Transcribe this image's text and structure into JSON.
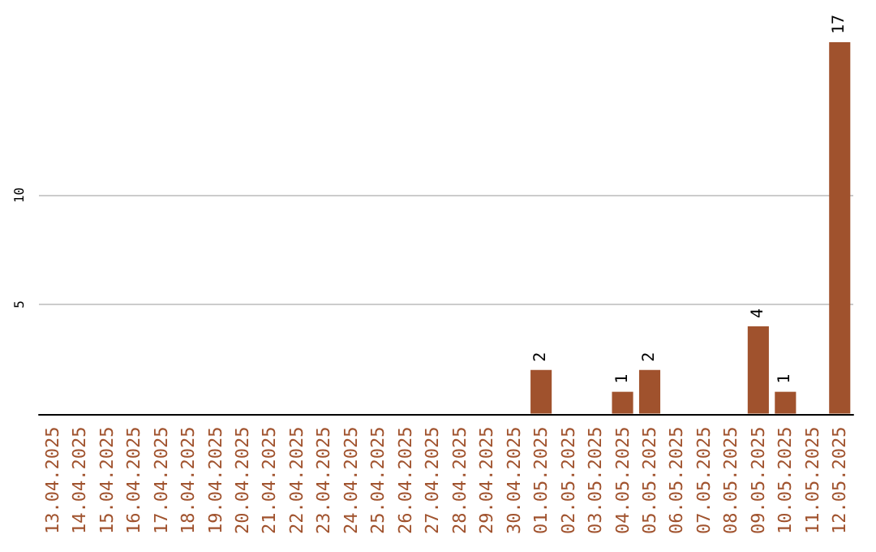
{
  "chart_data": {
    "type": "bar",
    "categories": [
      "13.04.2025",
      "14.04.2025",
      "15.04.2025",
      "16.04.2025",
      "17.04.2025",
      "18.04.2025",
      "19.04.2025",
      "20.04.2025",
      "21.04.2025",
      "22.04.2025",
      "23.04.2025",
      "24.04.2025",
      "25.04.2025",
      "26.04.2025",
      "27.04.2025",
      "28.04.2025",
      "29.04.2025",
      "30.04.2025",
      "01.05.2025",
      "02.05.2025",
      "03.05.2025",
      "04.05.2025",
      "05.05.2025",
      "06.05.2025",
      "07.05.2025",
      "08.05.2025",
      "09.05.2025",
      "10.05.2025",
      "11.05.2025",
      "12.05.2025"
    ],
    "values": [
      0,
      0,
      0,
      0,
      0,
      0,
      0,
      0,
      0,
      0,
      0,
      0,
      0,
      0,
      0,
      0,
      0,
      0,
      2,
      0,
      0,
      1,
      2,
      0,
      0,
      0,
      4,
      1,
      0,
      17
    ],
    "value_labels": [
      null,
      null,
      null,
      null,
      null,
      null,
      null,
      null,
      null,
      null,
      null,
      null,
      null,
      null,
      null,
      null,
      null,
      null,
      "2",
      null,
      null,
      "1",
      "2",
      null,
      null,
      null,
      "4",
      "1",
      null,
      "17"
    ],
    "color": "#a0522d",
    "ylim": [
      0,
      17
    ],
    "yticks": [
      5,
      10
    ],
    "grid": "y"
  }
}
